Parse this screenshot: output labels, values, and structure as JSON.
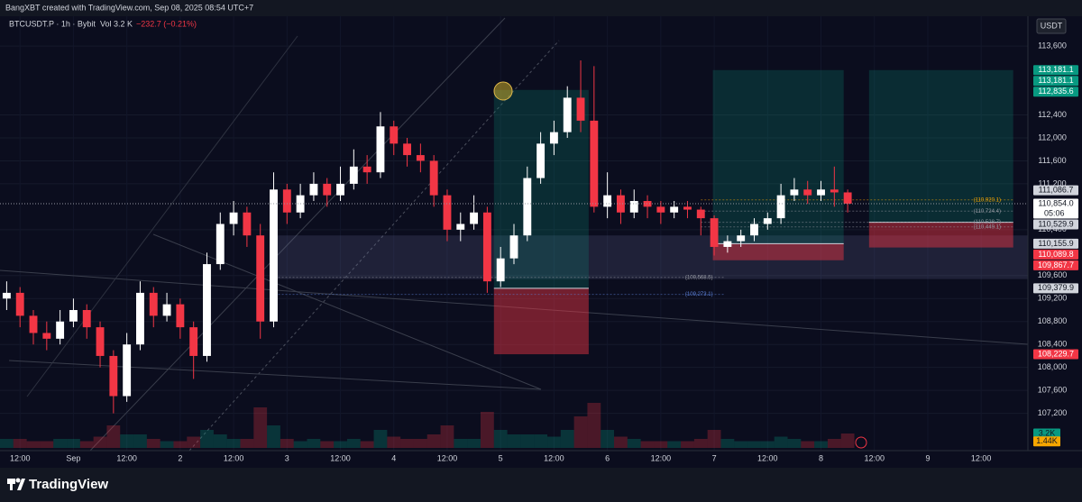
{
  "top_bar": {
    "text": "BangXBT created with TradingView.com, Sep 08, 2025 08:54 UTC+7"
  },
  "legend": {
    "symbol": "BTCUSDT.P · 1h · Bybit",
    "vol_label": "Vol",
    "vol_value": "3.2 K",
    "change": "−232.7 (−0.21%)"
  },
  "currency": "USDT",
  "footer": {
    "brand": "TradingView"
  },
  "chart_data": {
    "type": "candlestick",
    "candles": [
      [
        109200,
        109500,
        109000,
        109300
      ],
      [
        109300,
        109400,
        108700,
        108900
      ],
      [
        108900,
        109000,
        108400,
        108600
      ],
      [
        108600,
        108800,
        108300,
        108500
      ],
      [
        108500,
        109000,
        108400,
        108800
      ],
      [
        108800,
        109200,
        108700,
        109000
      ],
      [
        109000,
        109100,
        108500,
        108700
      ],
      [
        108700,
        108800,
        108000,
        108200
      ],
      [
        108200,
        108300,
        107200,
        107500
      ],
      [
        107500,
        108600,
        107400,
        108400
      ],
      [
        108400,
        109500,
        108300,
        109300
      ],
      [
        109300,
        109400,
        108700,
        108900
      ],
      [
        108900,
        109300,
        108800,
        109100
      ],
      [
        109100,
        109200,
        108500,
        108700
      ],
      [
        108700,
        108800,
        107800,
        108200
      ],
      [
        108200,
        110000,
        108100,
        109800
      ],
      [
        109800,
        110700,
        109700,
        110500
      ],
      [
        110500,
        110900,
        110300,
        110700
      ],
      [
        110700,
        110800,
        110100,
        110300
      ],
      [
        110300,
        110500,
        108500,
        108800
      ],
      [
        108800,
        111400,
        108700,
        111100
      ],
      [
        111100,
        111200,
        110500,
        110700
      ],
      [
        110700,
        111200,
        110600,
        111000
      ],
      [
        111000,
        111400,
        110900,
        111200
      ],
      [
        111200,
        111300,
        110800,
        111000
      ],
      [
        111000,
        111500,
        110900,
        111200
      ],
      [
        111200,
        111800,
        111100,
        111500
      ],
      [
        111500,
        111700,
        111200,
        111400
      ],
      [
        111400,
        112450,
        111300,
        112200
      ],
      [
        112200,
        112300,
        111700,
        111900
      ],
      [
        111900,
        112000,
        111500,
        111700
      ],
      [
        111700,
        111900,
        111400,
        111600
      ],
      [
        111600,
        111700,
        110800,
        111000
      ],
      [
        111000,
        111100,
        110200,
        110400
      ],
      [
        110400,
        110700,
        110200,
        110500
      ],
      [
        110500,
        111000,
        110400,
        110700
      ],
      [
        110700,
        110800,
        109300,
        109500
      ],
      [
        109500,
        110100,
        109400,
        109900
      ],
      [
        109900,
        110500,
        109800,
        110300
      ],
      [
        110300,
        111500,
        110200,
        111300
      ],
      [
        111300,
        112100,
        111200,
        111900
      ],
      [
        111900,
        112300,
        111700,
        112100
      ],
      [
        112100,
        112900,
        112000,
        112700
      ],
      [
        112700,
        113350,
        112100,
        112300
      ],
      [
        112300,
        113250,
        110700,
        110800
      ],
      [
        110800,
        111400,
        110600,
        111000
      ],
      [
        111000,
        111100,
        110500,
        110700
      ],
      [
        110700,
        111100,
        110600,
        110900
      ],
      [
        110900,
        111000,
        110600,
        110800
      ],
      [
        110800,
        110900,
        110500,
        110700
      ],
      [
        110700,
        110900,
        110600,
        110800
      ],
      [
        110800,
        110900,
        110600,
        110750
      ],
      [
        110750,
        110800,
        110300,
        110600
      ],
      [
        110600,
        110650,
        109950,
        110100
      ],
      [
        110100,
        110300,
        110000,
        110200
      ],
      [
        110200,
        110400,
        110100,
        110300
      ],
      [
        110300,
        110600,
        110200,
        110500
      ],
      [
        110500,
        110700,
        110400,
        110600
      ],
      [
        110600,
        111200,
        110500,
        111000
      ],
      [
        111000,
        111300,
        110900,
        111100
      ],
      [
        111100,
        111250,
        110850,
        111000
      ],
      [
        111000,
        111250,
        110900,
        111100
      ],
      [
        111100,
        111500,
        110800,
        111050
      ],
      [
        111050,
        111100,
        110700,
        110854
      ]
    ],
    "volume": [
      2,
      2,
      1.5,
      1.5,
      2,
      2,
      1.5,
      2.5,
      5,
      3,
      3,
      2,
      1.5,
      1.5,
      2.5,
      4,
      3,
      2,
      2,
      9,
      5,
      2,
      1.5,
      2,
      1.5,
      1.5,
      2,
      1.5,
      4,
      2.5,
      2,
      2,
      3,
      5,
      2,
      2,
      8,
      4,
      3,
      3,
      3,
      2.5,
      4,
      7,
      10,
      4,
      2.5,
      2,
      1.5,
      1.5,
      1.5,
      1.5,
      2,
      4,
      2,
      1.5,
      1.5,
      1.5,
      2.5,
      2,
      1.5,
      1.5,
      2,
      3.2
    ],
    "up_color": "#ffffff",
    "down_color": "#f23645",
    "xlim": [
      -0.5,
      76.5
    ],
    "xticks": [
      {
        "value": 1,
        "label": "12:00"
      },
      {
        "value": 5,
        "label": "Sep"
      },
      {
        "value": 9,
        "label": "12:00"
      },
      {
        "value": 13,
        "label": "2"
      },
      {
        "value": 17,
        "label": "12:00"
      },
      {
        "value": 21,
        "label": "3"
      },
      {
        "value": 25,
        "label": "12:00"
      },
      {
        "value": 29,
        "label": "4"
      },
      {
        "value": 33,
        "label": "12:00"
      },
      {
        "value": 37,
        "label": "5"
      },
      {
        "value": 41,
        "label": "12:00"
      },
      {
        "value": 45,
        "label": "6"
      },
      {
        "value": 49,
        "label": "12:00"
      },
      {
        "value": 53,
        "label": "7"
      },
      {
        "value": 57,
        "label": "12:00"
      },
      {
        "value": 61,
        "label": "8"
      },
      {
        "value": 65,
        "label": "12:00"
      },
      {
        "value": 69,
        "label": "9"
      },
      {
        "value": 73,
        "label": "12:00"
      }
    ],
    "ylim": [
      106550,
      114120
    ],
    "yticks": [
      {
        "value": 107200,
        "label": "107,200"
      },
      {
        "value": 107600,
        "label": "107,600"
      },
      {
        "value": 108000,
        "label": "108,000"
      },
      {
        "value": 108400,
        "label": "108,400"
      },
      {
        "value": 108800,
        "label": "108,800"
      },
      {
        "value": 109200,
        "label": "109,200"
      },
      {
        "value": 109600,
        "label": "109,600"
      },
      {
        "value": 110400,
        "label": "110,400"
      },
      {
        "value": 111200,
        "label": "111,200"
      },
      {
        "value": 111600,
        "label": "111,600"
      },
      {
        "value": 112000,
        "label": "112,000"
      },
      {
        "value": 112400,
        "label": "112,400"
      },
      {
        "value": 113600,
        "label": "113,600"
      }
    ],
    "vlim": [
      0,
      14
    ],
    "volume_tags": [
      {
        "value": 3.2,
        "label": "3.2K",
        "color": "#089981"
      },
      {
        "value": 1.44,
        "label": "1.44K",
        "color": "#f7a600"
      }
    ],
    "price_tags": [
      {
        "value": 113181.1,
        "label": "113,181.1",
        "color": "#089981"
      },
      {
        "value": 113181.1,
        "label": "113,181.1",
        "color": "#089981"
      },
      {
        "value": 112835.6,
        "label": "112,835.6",
        "color": "#089981"
      },
      {
        "value": 111086.7,
        "label": "111,086.7",
        "color": "#d1d4dc"
      },
      {
        "value": 110854.0,
        "label": "110,854.0",
        "countdown": "05:06",
        "color": "#ffffff"
      },
      {
        "value": 110529.9,
        "label": "110,529.9",
        "color": "#d1d4dc"
      },
      {
        "value": 110155.9,
        "label": "110,155.9",
        "color": "#d1d4dc"
      },
      {
        "value": 110089.8,
        "label": "110,089.8",
        "color": "#f23645"
      },
      {
        "value": 109867.7,
        "label": "109,867.7",
        "color": "#f23645"
      },
      {
        "value": 109379.9,
        "label": "109,379.9",
        "color": "#d1d4dc"
      },
      {
        "value": 108229.7,
        "label": "108,229.7",
        "color": "#f23645"
      }
    ],
    "levels": [
      {
        "price": 110920.1,
        "label": "(110,920.1)",
        "start": 52,
        "end": 75.4,
        "color": "#f7a600"
      },
      {
        "price": 110724.4,
        "label": "(110,724.4)",
        "start": 52,
        "end": 75.4,
        "color": "#9598a1"
      },
      {
        "price": 110528.7,
        "label": "(110,528.7)",
        "start": 52,
        "end": 75.4,
        "color": "#9598a1"
      },
      {
        "price": 110449.1,
        "label": "(110,449.1)",
        "start": 52,
        "end": 75.4,
        "color": "#9598a1"
      },
      {
        "price": 109568.5,
        "label": "(109,568.5)",
        "start": 19.8,
        "end": 53.8,
        "color": "#9598a1"
      },
      {
        "price": 109273.1,
        "label": "(109,273.1)",
        "start": 19.8,
        "end": 53.8,
        "color": "#5b7fd6"
      }
    ],
    "zones": [
      {
        "start": 19.8,
        "end": 76.5,
        "top": 110300,
        "bottom": 109540
      }
    ],
    "positions": [
      {
        "start": 36.5,
        "end": 43.6,
        "target": 112835.6,
        "entry": 109379.9,
        "stop": 108229.7
      },
      {
        "start": 52.9,
        "end": 62.7,
        "target": 113181.1,
        "entry": 110155.9,
        "stop": 109867.7
      },
      {
        "start": 64.6,
        "end": 75.4,
        "target": 113181.1,
        "entry": 110529.9,
        "stop": 110089.8
      }
    ]
  }
}
